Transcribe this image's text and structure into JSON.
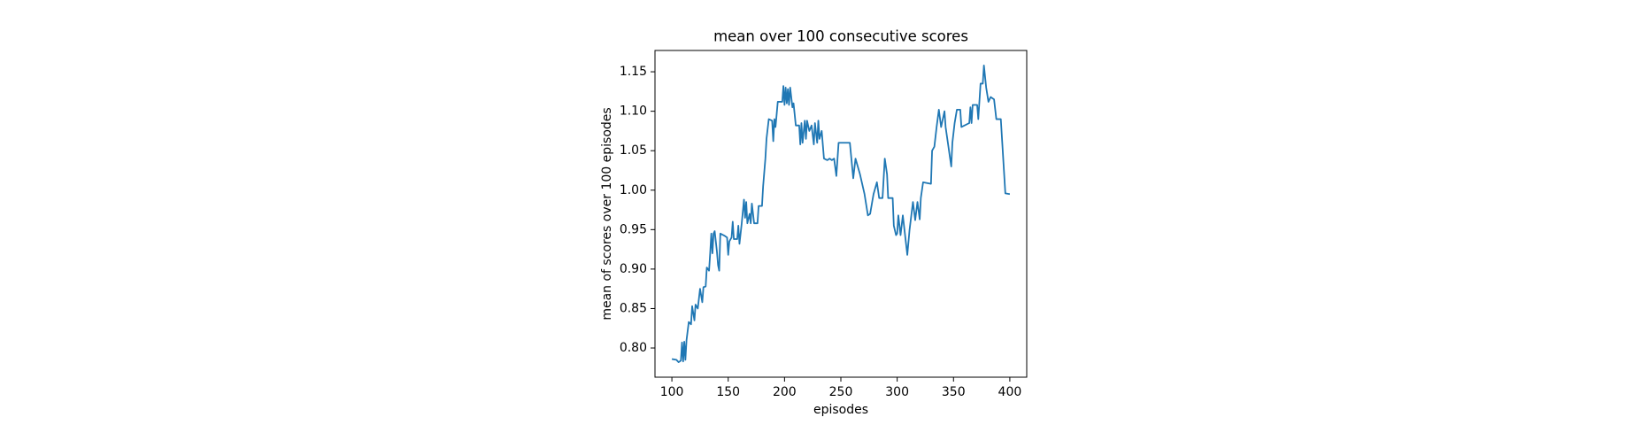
{
  "chart_data": {
    "type": "line",
    "title": "mean over 100 consecutive scores",
    "xlabel": "episodes",
    "ylabel": "mean of scores over 100 episodes",
    "color": "#1f77b4",
    "x": [
      100,
      104,
      106,
      108,
      109,
      110,
      111,
      112,
      113,
      115,
      117,
      118,
      120,
      121,
      123,
      125,
      127,
      128,
      130,
      131,
      133,
      134,
      135,
      136,
      137,
      138,
      140,
      141,
      142,
      143,
      147,
      149,
      150,
      151,
      153,
      154,
      155,
      158,
      159,
      160,
      162,
      164,
      165,
      166,
      167,
      169,
      170,
      171,
      173,
      176,
      177,
      180,
      181,
      183,
      184,
      186,
      189,
      190,
      191,
      192,
      194,
      198,
      199,
      200,
      201,
      202,
      203,
      204,
      205,
      207,
      208,
      210,
      213,
      214,
      215,
      216,
      218,
      219,
      220,
      222,
      224,
      226,
      227,
      229,
      230,
      231,
      233,
      235,
      238,
      240,
      242,
      244,
      246,
      248,
      250,
      252,
      258,
      260,
      261,
      263,
      267,
      271,
      274,
      276,
      279,
      282,
      284,
      287,
      289,
      291,
      292,
      296,
      297,
      299,
      300,
      301,
      303,
      305,
      309,
      311,
      314,
      316,
      318,
      320,
      321,
      323,
      330,
      331,
      333,
      335,
      337,
      339,
      342,
      343,
      345,
      348,
      349,
      351,
      353,
      356,
      357,
      364,
      365,
      366,
      367,
      371,
      372,
      374,
      376,
      377,
      379,
      381,
      383,
      386,
      388,
      392,
      396,
      400
    ],
    "values": [
      0.786,
      0.785,
      0.782,
      0.784,
      0.807,
      0.783,
      0.808,
      0.785,
      0.81,
      0.833,
      0.83,
      0.853,
      0.835,
      0.855,
      0.85,
      0.875,
      0.858,
      0.877,
      0.878,
      0.902,
      0.898,
      0.92,
      0.945,
      0.92,
      0.945,
      0.948,
      0.922,
      0.905,
      0.898,
      0.945,
      0.942,
      0.94,
      0.918,
      0.935,
      0.94,
      0.96,
      0.938,
      0.938,
      0.955,
      0.932,
      0.958,
      0.988,
      0.965,
      0.985,
      0.958,
      0.97,
      0.958,
      0.983,
      0.958,
      0.958,
      0.98,
      0.98,
      1.005,
      1.04,
      1.065,
      1.09,
      1.088,
      1.062,
      1.09,
      1.08,
      1.112,
      1.112,
      1.132,
      1.108,
      1.13,
      1.11,
      1.128,
      1.108,
      1.13,
      1.105,
      1.11,
      1.082,
      1.082,
      1.058,
      1.085,
      1.06,
      1.088,
      1.065,
      1.088,
      1.075,
      1.082,
      1.058,
      1.085,
      1.06,
      1.088,
      1.065,
      1.075,
      1.04,
      1.038,
      1.04,
      1.038,
      1.04,
      1.018,
      1.06,
      1.06,
      1.06,
      1.06,
      1.03,
      1.015,
      1.04,
      1.02,
      0.995,
      0.968,
      0.97,
      0.995,
      1.01,
      0.99,
      0.99,
      1.04,
      1.02,
      0.99,
      0.99,
      0.955,
      0.943,
      0.945,
      0.968,
      0.943,
      0.968,
      0.918,
      0.95,
      0.985,
      0.962,
      0.985,
      0.963,
      0.99,
      1.01,
      1.008,
      1.05,
      1.055,
      1.08,
      1.102,
      1.08,
      1.1,
      1.08,
      1.06,
      1.03,
      1.06,
      1.085,
      1.102,
      1.102,
      1.08,
      1.085,
      1.105,
      1.085,
      1.108,
      1.108,
      1.09,
      1.135,
      1.135,
      1.158,
      1.13,
      1.112,
      1.118,
      1.115,
      1.09,
      1.09,
      0.996,
      0.995
    ],
    "xlim": [
      85,
      415
    ],
    "ylim": [
      0.763,
      1.177
    ],
    "xticks": [
      100,
      150,
      200,
      250,
      300,
      350,
      400
    ],
    "yticks": [
      {
        "value": 0.8,
        "label": "0.80"
      },
      0.85,
      {
        "value": 0.9,
        "label": "0.90"
      },
      0.95,
      {
        "value": 1.0,
        "label": "1.00"
      },
      1.05,
      {
        "value": 1.1,
        "label": "1.10"
      },
      1.15
    ]
  }
}
